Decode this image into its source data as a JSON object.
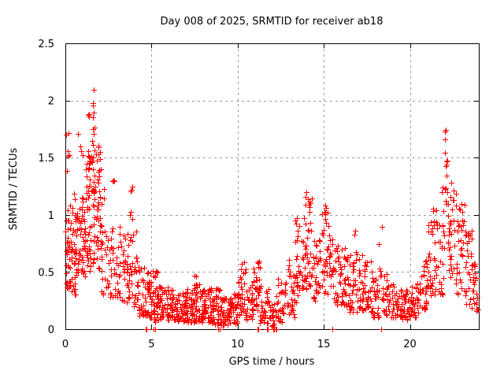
{
  "chart_data": {
    "type": "scatter",
    "title": "Day 008 of 2025, SRMTID for receiver ab18",
    "xlabel": "GPS time / hours",
    "ylabel": "SRMTID / TECUs",
    "xlim": [
      0,
      24
    ],
    "ylim": [
      0,
      2.5
    ],
    "xticks": [
      0,
      5,
      10,
      15,
      20
    ],
    "yticks": [
      0,
      0.5,
      1,
      1.5,
      2,
      2.5
    ],
    "grid": true,
    "grid_style": "dashed",
    "legend": "none",
    "marker": "plus",
    "point_color": "#ff0000",
    "grid_color": "#999999",
    "axis_color": "#000000",
    "background": "#ffffff",
    "cluster_fields": [
      "x_start_hour",
      "x_end_hour",
      "num_points",
      "y_min_tecu",
      "y_max_tecu",
      "low_bias_exponent"
    ],
    "clusters": [
      [
        0.0,
        0.35,
        40,
        0.35,
        1.1,
        1.3
      ],
      [
        0.05,
        0.35,
        6,
        1.35,
        1.75,
        1.0
      ],
      [
        0.35,
        0.65,
        30,
        0.3,
        1.0,
        1.3
      ],
      [
        0.4,
        0.65,
        4,
        1.0,
        1.35,
        1.0
      ],
      [
        0.65,
        0.95,
        26,
        0.45,
        1.15,
        1.1
      ],
      [
        0.7,
        0.9,
        3,
        1.5,
        1.9,
        1.0
      ],
      [
        0.95,
        1.25,
        30,
        0.45,
        1.2,
        1.1
      ],
      [
        1.0,
        1.25,
        4,
        1.2,
        1.55,
        1.0
      ],
      [
        1.25,
        1.55,
        35,
        0.5,
        1.5,
        1.0
      ],
      [
        1.3,
        1.55,
        8,
        1.5,
        1.95,
        1.0
      ],
      [
        1.55,
        1.85,
        32,
        0.55,
        1.6,
        1.0
      ],
      [
        1.55,
        1.8,
        10,
        1.6,
        2.11,
        0.85
      ],
      [
        1.85,
        2.1,
        28,
        0.5,
        1.45,
        1.1
      ],
      [
        1.85,
        2.05,
        5,
        1.45,
        1.8,
        1.0
      ],
      [
        2.1,
        2.5,
        20,
        0.3,
        0.95,
        1.2
      ],
      [
        2.15,
        2.4,
        2,
        1.1,
        1.3,
        1.0
      ],
      [
        2.5,
        2.95,
        24,
        0.25,
        0.9,
        1.2
      ],
      [
        2.6,
        3.0,
        3,
        1.0,
        1.45,
        1.0
      ],
      [
        2.95,
        3.35,
        22,
        0.25,
        0.9,
        1.25
      ],
      [
        3.35,
        3.7,
        26,
        0.2,
        0.85,
        1.3
      ],
      [
        3.7,
        3.95,
        14,
        0.3,
        1.0,
        1.0
      ],
      [
        3.72,
        3.9,
        4,
        1.0,
        1.25,
        1.0
      ],
      [
        3.95,
        4.2,
        16,
        0.2,
        0.95,
        1.15
      ],
      [
        4.2,
        4.7,
        32,
        0.12,
        0.55,
        1.5
      ],
      [
        4.7,
        5.0,
        32,
        0.1,
        0.5,
        1.45
      ],
      [
        5.0,
        5.4,
        36,
        0.05,
        0.55,
        1.4
      ],
      [
        5.4,
        6.0,
        42,
        0.08,
        0.38,
        1.35
      ],
      [
        6.0,
        6.5,
        40,
        0.08,
        0.35,
        1.3
      ],
      [
        6.5,
        7.0,
        40,
        0.07,
        0.33,
        1.3
      ],
      [
        7.0,
        7.5,
        42,
        0.06,
        0.36,
        1.3
      ],
      [
        7.4,
        7.65,
        4,
        0.38,
        0.47,
        1.0
      ],
      [
        7.5,
        8.0,
        42,
        0.06,
        0.4,
        1.35
      ],
      [
        8.0,
        8.5,
        40,
        0.05,
        0.36,
        1.3
      ],
      [
        8.5,
        9.0,
        42,
        0.04,
        0.4,
        1.35
      ],
      [
        9.0,
        9.5,
        40,
        0.03,
        0.28,
        1.4
      ],
      [
        9.5,
        10.0,
        38,
        0.05,
        0.33,
        1.3
      ],
      [
        10.0,
        10.45,
        30,
        0.1,
        0.55,
        1.2
      ],
      [
        10.2,
        10.4,
        3,
        0.5,
        0.6,
        1.0
      ],
      [
        10.45,
        10.9,
        28,
        0.08,
        0.42,
        1.3
      ],
      [
        10.9,
        11.3,
        30,
        0.1,
        0.6,
        1.2
      ],
      [
        11.3,
        11.8,
        28,
        0.05,
        0.45,
        1.4
      ],
      [
        11.8,
        12.3,
        25,
        0.02,
        0.3,
        1.6
      ],
      [
        12.3,
        12.8,
        28,
        0.05,
        0.45,
        1.3
      ],
      [
        12.8,
        13.3,
        30,
        0.1,
        0.62,
        1.2
      ],
      [
        13.3,
        13.65,
        26,
        0.2,
        1.0,
        1.1
      ],
      [
        13.65,
        13.85,
        10,
        0.3,
        0.8,
        1.1
      ],
      [
        13.85,
        14.35,
        36,
        0.3,
        1.2,
        1.1
      ],
      [
        13.95,
        14.25,
        5,
        1.0,
        1.28,
        1.0
      ],
      [
        14.35,
        14.8,
        30,
        0.25,
        0.8,
        1.2
      ],
      [
        14.8,
        15.3,
        30,
        0.3,
        1.05,
        1.1
      ],
      [
        15.0,
        15.25,
        3,
        1.0,
        1.12,
        1.0
      ],
      [
        15.3,
        15.8,
        30,
        0.2,
        0.8,
        1.2
      ],
      [
        15.8,
        16.3,
        35,
        0.2,
        0.75,
        1.2
      ],
      [
        16.3,
        16.8,
        35,
        0.15,
        0.65,
        1.3
      ],
      [
        16.75,
        16.9,
        2,
        0.78,
        0.88,
        1.0
      ],
      [
        16.8,
        17.3,
        32,
        0.15,
        0.7,
        1.25
      ],
      [
        17.3,
        17.8,
        30,
        0.15,
        0.6,
        1.3
      ],
      [
        17.8,
        18.2,
        26,
        0.1,
        0.5,
        1.3
      ],
      [
        18.2,
        18.45,
        10,
        0.2,
        0.95,
        1.0
      ],
      [
        18.45,
        19.0,
        30,
        0.1,
        0.5,
        1.3
      ],
      [
        19.0,
        19.5,
        30,
        0.1,
        0.4,
        1.3
      ],
      [
        19.5,
        20.0,
        35,
        0.08,
        0.35,
        1.3
      ],
      [
        20.0,
        20.5,
        35,
        0.1,
        0.4,
        1.3
      ],
      [
        20.5,
        21.0,
        32,
        0.15,
        0.6,
        1.2
      ],
      [
        21.0,
        21.5,
        30,
        0.25,
        0.95,
        1.1
      ],
      [
        21.3,
        21.45,
        2,
        1.0,
        1.15,
        1.0
      ],
      [
        21.5,
        22.0,
        30,
        0.3,
        1.05,
        1.1
      ],
      [
        21.8,
        21.95,
        2,
        1.15,
        1.28,
        1.0
      ],
      [
        22.0,
        22.3,
        20,
        0.5,
        1.55,
        1.0
      ],
      [
        22.02,
        22.2,
        4,
        1.55,
        1.78,
        1.0
      ],
      [
        22.3,
        22.7,
        26,
        0.4,
        1.35,
        1.1
      ],
      [
        22.7,
        23.2,
        32,
        0.3,
        1.1,
        1.1
      ],
      [
        23.2,
        23.6,
        28,
        0.2,
        0.9,
        1.2
      ],
      [
        23.6,
        23.95,
        25,
        0.15,
        0.6,
        1.3
      ]
    ],
    "zero_points": [
      4.66,
      4.7,
      5.1,
      5.22,
      8.85,
      8.95,
      11.15,
      11.2,
      11.68,
      11.73,
      12.05,
      12.1,
      12.2,
      12.26,
      15.48,
      15.52,
      18.33
    ]
  }
}
